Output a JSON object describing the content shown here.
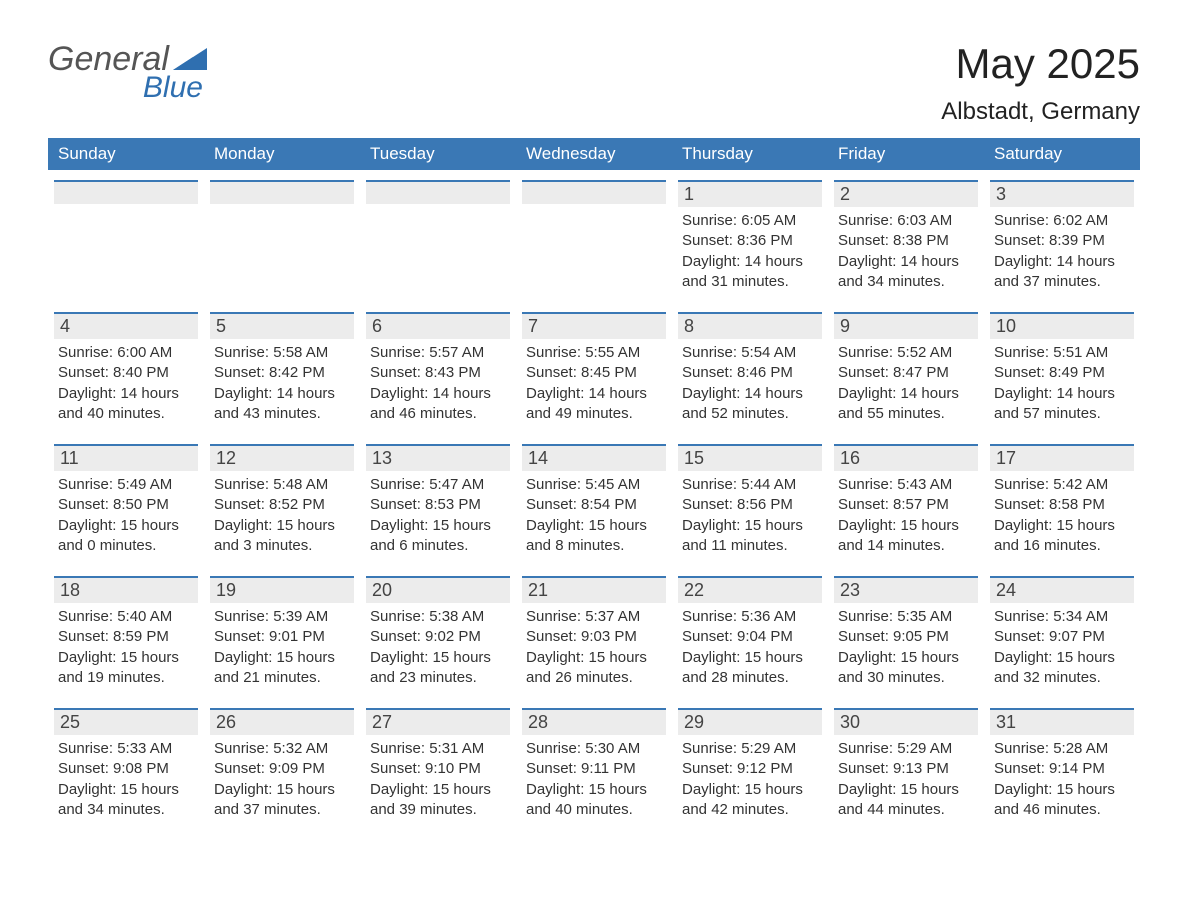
{
  "colors": {
    "header_bg": "#3a78b5",
    "header_text": "#ffffff",
    "daynum_bg": "#ececec",
    "daynum_border_top": "#3a78b5",
    "body_text": "#333333",
    "logo_gray": "#555555",
    "logo_blue": "#2f6fb0",
    "title_color": "#222222"
  },
  "logo": {
    "word1": "General",
    "word2": "Blue"
  },
  "title": "May 2025",
  "location": "Albstadt, Germany",
  "days_of_week": [
    "Sunday",
    "Monday",
    "Tuesday",
    "Wednesday",
    "Thursday",
    "Friday",
    "Saturday"
  ],
  "weeks": [
    [
      null,
      null,
      null,
      null,
      {
        "n": "1",
        "sunrise": "6:05 AM",
        "sunset": "8:36 PM",
        "dl1": "14 hours",
        "dl2": "and 31 minutes."
      },
      {
        "n": "2",
        "sunrise": "6:03 AM",
        "sunset": "8:38 PM",
        "dl1": "14 hours",
        "dl2": "and 34 minutes."
      },
      {
        "n": "3",
        "sunrise": "6:02 AM",
        "sunset": "8:39 PM",
        "dl1": "14 hours",
        "dl2": "and 37 minutes."
      }
    ],
    [
      {
        "n": "4",
        "sunrise": "6:00 AM",
        "sunset": "8:40 PM",
        "dl1": "14 hours",
        "dl2": "and 40 minutes."
      },
      {
        "n": "5",
        "sunrise": "5:58 AM",
        "sunset": "8:42 PM",
        "dl1": "14 hours",
        "dl2": "and 43 minutes."
      },
      {
        "n": "6",
        "sunrise": "5:57 AM",
        "sunset": "8:43 PM",
        "dl1": "14 hours",
        "dl2": "and 46 minutes."
      },
      {
        "n": "7",
        "sunrise": "5:55 AM",
        "sunset": "8:45 PM",
        "dl1": "14 hours",
        "dl2": "and 49 minutes."
      },
      {
        "n": "8",
        "sunrise": "5:54 AM",
        "sunset": "8:46 PM",
        "dl1": "14 hours",
        "dl2": "and 52 minutes."
      },
      {
        "n": "9",
        "sunrise": "5:52 AM",
        "sunset": "8:47 PM",
        "dl1": "14 hours",
        "dl2": "and 55 minutes."
      },
      {
        "n": "10",
        "sunrise": "5:51 AM",
        "sunset": "8:49 PM",
        "dl1": "14 hours",
        "dl2": "and 57 minutes."
      }
    ],
    [
      {
        "n": "11",
        "sunrise": "5:49 AM",
        "sunset": "8:50 PM",
        "dl1": "15 hours",
        "dl2": "and 0 minutes."
      },
      {
        "n": "12",
        "sunrise": "5:48 AM",
        "sunset": "8:52 PM",
        "dl1": "15 hours",
        "dl2": "and 3 minutes."
      },
      {
        "n": "13",
        "sunrise": "5:47 AM",
        "sunset": "8:53 PM",
        "dl1": "15 hours",
        "dl2": "and 6 minutes."
      },
      {
        "n": "14",
        "sunrise": "5:45 AM",
        "sunset": "8:54 PM",
        "dl1": "15 hours",
        "dl2": "and 8 minutes."
      },
      {
        "n": "15",
        "sunrise": "5:44 AM",
        "sunset": "8:56 PM",
        "dl1": "15 hours",
        "dl2": "and 11 minutes."
      },
      {
        "n": "16",
        "sunrise": "5:43 AM",
        "sunset": "8:57 PM",
        "dl1": "15 hours",
        "dl2": "and 14 minutes."
      },
      {
        "n": "17",
        "sunrise": "5:42 AM",
        "sunset": "8:58 PM",
        "dl1": "15 hours",
        "dl2": "and 16 minutes."
      }
    ],
    [
      {
        "n": "18",
        "sunrise": "5:40 AM",
        "sunset": "8:59 PM",
        "dl1": "15 hours",
        "dl2": "and 19 minutes."
      },
      {
        "n": "19",
        "sunrise": "5:39 AM",
        "sunset": "9:01 PM",
        "dl1": "15 hours",
        "dl2": "and 21 minutes."
      },
      {
        "n": "20",
        "sunrise": "5:38 AM",
        "sunset": "9:02 PM",
        "dl1": "15 hours",
        "dl2": "and 23 minutes."
      },
      {
        "n": "21",
        "sunrise": "5:37 AM",
        "sunset": "9:03 PM",
        "dl1": "15 hours",
        "dl2": "and 26 minutes."
      },
      {
        "n": "22",
        "sunrise": "5:36 AM",
        "sunset": "9:04 PM",
        "dl1": "15 hours",
        "dl2": "and 28 minutes."
      },
      {
        "n": "23",
        "sunrise": "5:35 AM",
        "sunset": "9:05 PM",
        "dl1": "15 hours",
        "dl2": "and 30 minutes."
      },
      {
        "n": "24",
        "sunrise": "5:34 AM",
        "sunset": "9:07 PM",
        "dl1": "15 hours",
        "dl2": "and 32 minutes."
      }
    ],
    [
      {
        "n": "25",
        "sunrise": "5:33 AM",
        "sunset": "9:08 PM",
        "dl1": "15 hours",
        "dl2": "and 34 minutes."
      },
      {
        "n": "26",
        "sunrise": "5:32 AM",
        "sunset": "9:09 PM",
        "dl1": "15 hours",
        "dl2": "and 37 minutes."
      },
      {
        "n": "27",
        "sunrise": "5:31 AM",
        "sunset": "9:10 PM",
        "dl1": "15 hours",
        "dl2": "and 39 minutes."
      },
      {
        "n": "28",
        "sunrise": "5:30 AM",
        "sunset": "9:11 PM",
        "dl1": "15 hours",
        "dl2": "and 40 minutes."
      },
      {
        "n": "29",
        "sunrise": "5:29 AM",
        "sunset": "9:12 PM",
        "dl1": "15 hours",
        "dl2": "and 42 minutes."
      },
      {
        "n": "30",
        "sunrise": "5:29 AM",
        "sunset": "9:13 PM",
        "dl1": "15 hours",
        "dl2": "and 44 minutes."
      },
      {
        "n": "31",
        "sunrise": "5:28 AM",
        "sunset": "9:14 PM",
        "dl1": "15 hours",
        "dl2": "and 46 minutes."
      }
    ]
  ],
  "labels": {
    "sunrise": "Sunrise: ",
    "sunset": "Sunset: ",
    "daylight": "Daylight: "
  }
}
